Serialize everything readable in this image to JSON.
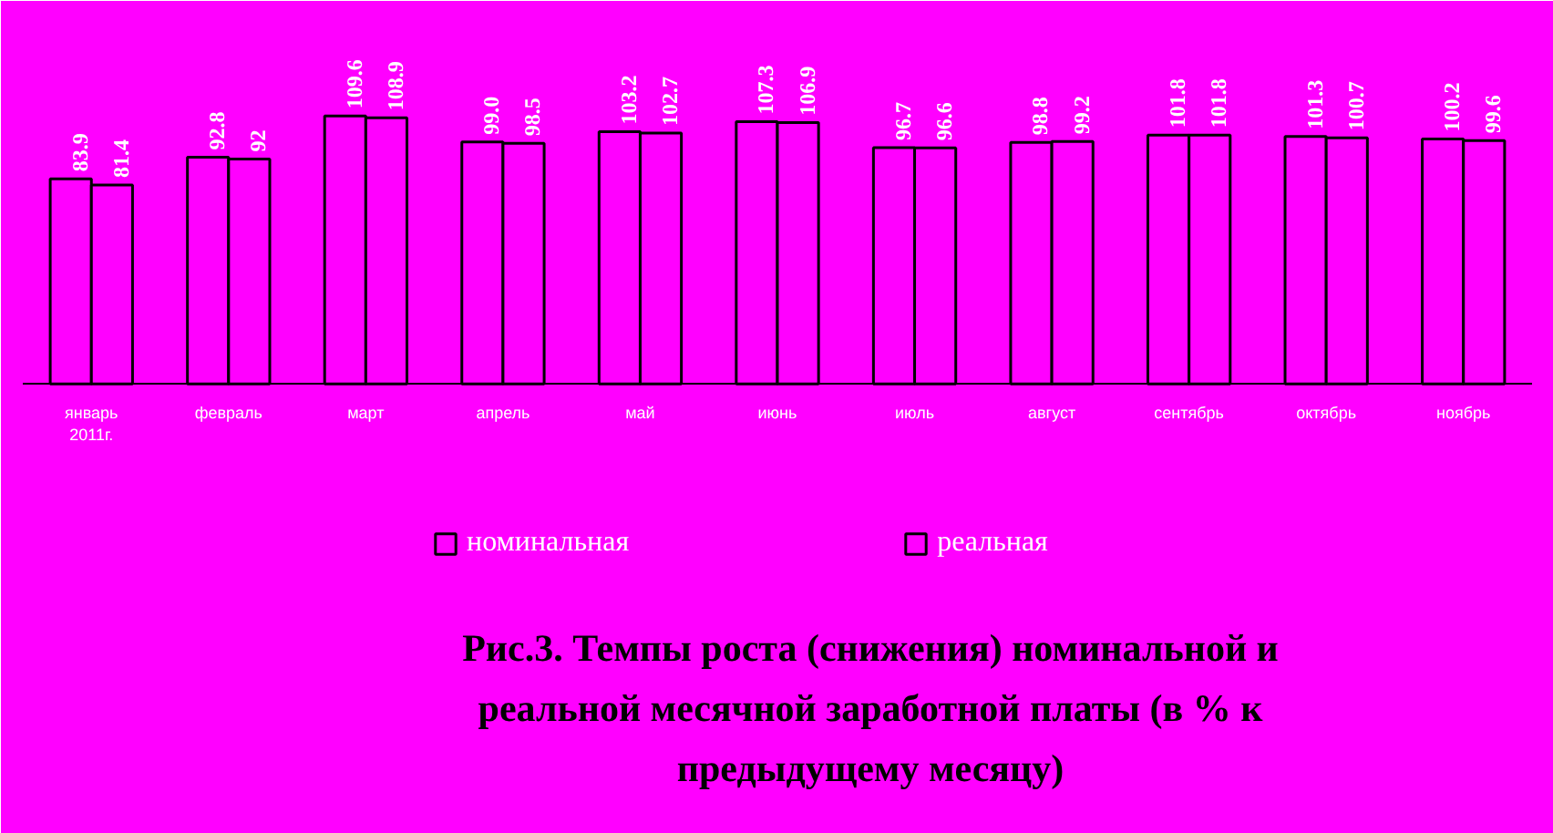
{
  "chart_data": {
    "type": "bar",
    "title": "Рис.3. Темпы роста (снижения) номинальной и\nреальной месячной заработной платы (в % к\nпредыдущему месяцу)",
    "categories": [
      "январь\n2011г.",
      "февраль",
      "март",
      "апрель",
      "май",
      "июнь",
      "июль",
      "август",
      "сентябрь",
      "октябрь",
      "ноябрь"
    ],
    "series": [
      {
        "name": "номинальная",
        "color": "#ff00ff",
        "values": [
          83.9,
          92.8,
          109.6,
          99.0,
          103.2,
          107.3,
          96.7,
          98.8,
          101.8,
          101.3,
          100.2
        ],
        "value_labels": [
          "83.9",
          "92.8",
          "109.6",
          "99.0",
          "103.2",
          "107.3",
          "96.7",
          "98.8",
          "101.8",
          "101.3",
          "100.2"
        ]
      },
      {
        "name": "реальная",
        "color": "#ff00ff",
        "values": [
          81.4,
          92,
          108.9,
          98.5,
          102.7,
          106.9,
          96.6,
          99.2,
          101.8,
          100.7,
          99.6
        ],
        "value_labels": [
          "81.4",
          "92",
          "108.9",
          "98.5",
          "102.7",
          "106.9",
          "96.6",
          "99.2",
          "101.8",
          "100.7",
          "99.6"
        ]
      }
    ],
    "data_labels": true,
    "legend": "bottom"
  }
}
